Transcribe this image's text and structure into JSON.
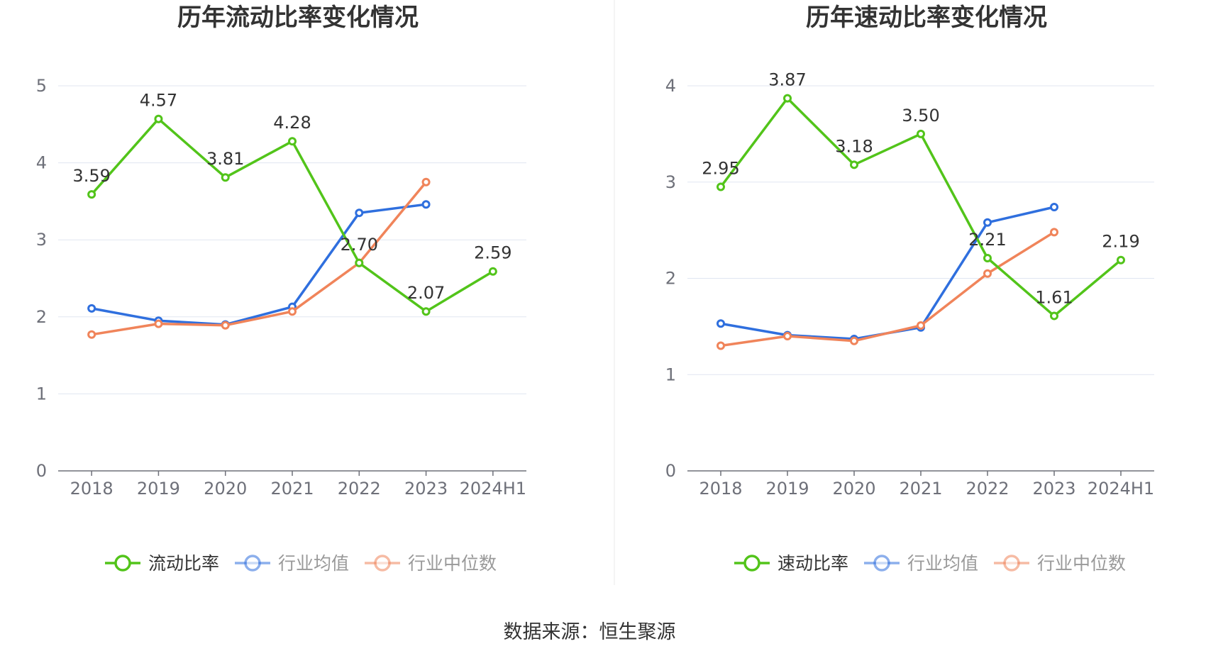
{
  "source": "数据来源：恒生聚源",
  "chart_data": [
    {
      "type": "line",
      "title": "历年流动比率变化情况",
      "categories": [
        "2018",
        "2019",
        "2020",
        "2021",
        "2022",
        "2023",
        "2024H1"
      ],
      "ylim": [
        0,
        5
      ],
      "yticks": [
        "0",
        "1",
        "2",
        "3",
        "4",
        "5"
      ],
      "grid": true,
      "legend": "bottom-center",
      "series": [
        {
          "name": "流动比率",
          "color": "#52c41a",
          "values": [
            3.59,
            4.57,
            3.81,
            4.28,
            2.7,
            2.07,
            2.59
          ],
          "labels": [
            "3.59",
            "4.57",
            "3.81",
            "4.28",
            "2.70",
            "2.07",
            "2.59"
          ]
        },
        {
          "name": "行业均值",
          "color": "#2f6fde",
          "values": [
            2.11,
            1.95,
            1.9,
            2.13,
            3.35,
            3.46,
            null
          ]
        },
        {
          "name": "行业中位数",
          "color": "#f0845a",
          "values": [
            1.77,
            1.91,
            1.89,
            2.07,
            2.7,
            3.75,
            null
          ]
        }
      ]
    },
    {
      "type": "line",
      "title": "历年速动比率变化情况",
      "categories": [
        "2018",
        "2019",
        "2020",
        "2021",
        "2022",
        "2023",
        "2024H1"
      ],
      "ylim": [
        0,
        4
      ],
      "yticks": [
        "0",
        "1",
        "2",
        "3",
        "4"
      ],
      "grid": true,
      "legend": "bottom-center",
      "series": [
        {
          "name": "速动比率",
          "color": "#52c41a",
          "values": [
            2.95,
            3.87,
            3.18,
            3.5,
            2.21,
            1.61,
            2.19
          ],
          "labels": [
            "2.95",
            "3.87",
            "3.18",
            "3.50",
            "2.21",
            "1.61",
            "2.19"
          ]
        },
        {
          "name": "行业均值",
          "color": "#2f6fde",
          "values": [
            1.53,
            1.41,
            1.37,
            1.49,
            2.58,
            2.74,
            null
          ]
        },
        {
          "name": "行业中位数",
          "color": "#f0845a",
          "values": [
            1.3,
            1.4,
            1.35,
            1.51,
            2.05,
            2.48,
            null
          ]
        }
      ]
    }
  ]
}
